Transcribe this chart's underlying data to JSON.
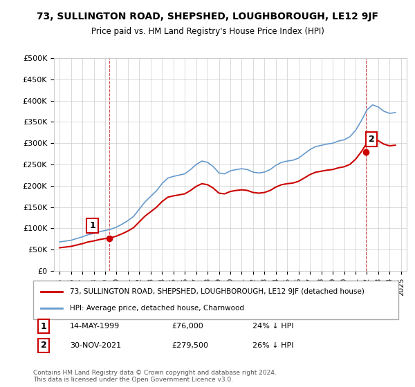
{
  "title": "73, SULLINGTON ROAD, SHEPSHED, LOUGHBOROUGH, LE12 9JF",
  "subtitle": "Price paid vs. HM Land Registry's House Price Index (HPI)",
  "sale1_date": "14-MAY-1999",
  "sale1_price": 76000,
  "sale1_label": "24% ↓ HPI",
  "sale2_date": "30-NOV-2021",
  "sale2_price": 279500,
  "sale2_label": "26% ↓ HPI",
  "legend_line1": "73, SULLINGTON ROAD, SHEPSHED, LOUGHBOROUGH, LE12 9JF (detached house)",
  "legend_line2": "HPI: Average price, detached house, Charnwood",
  "footer": "Contains HM Land Registry data © Crown copyright and database right 2024.\nThis data is licensed under the Open Government Licence v3.0.",
  "red_color": "#cc0000",
  "blue_color": "#6699cc",
  "marker_red": "#cc0000",
  "ylim": [
    0,
    500000
  ],
  "yticks": [
    0,
    50000,
    100000,
    150000,
    200000,
    250000,
    300000,
    350000,
    400000,
    450000,
    500000
  ],
  "xlim_start": 1994.5,
  "xlim_end": 2025.5,
  "sale1_x": 1999.37,
  "sale2_x": 2021.92
}
